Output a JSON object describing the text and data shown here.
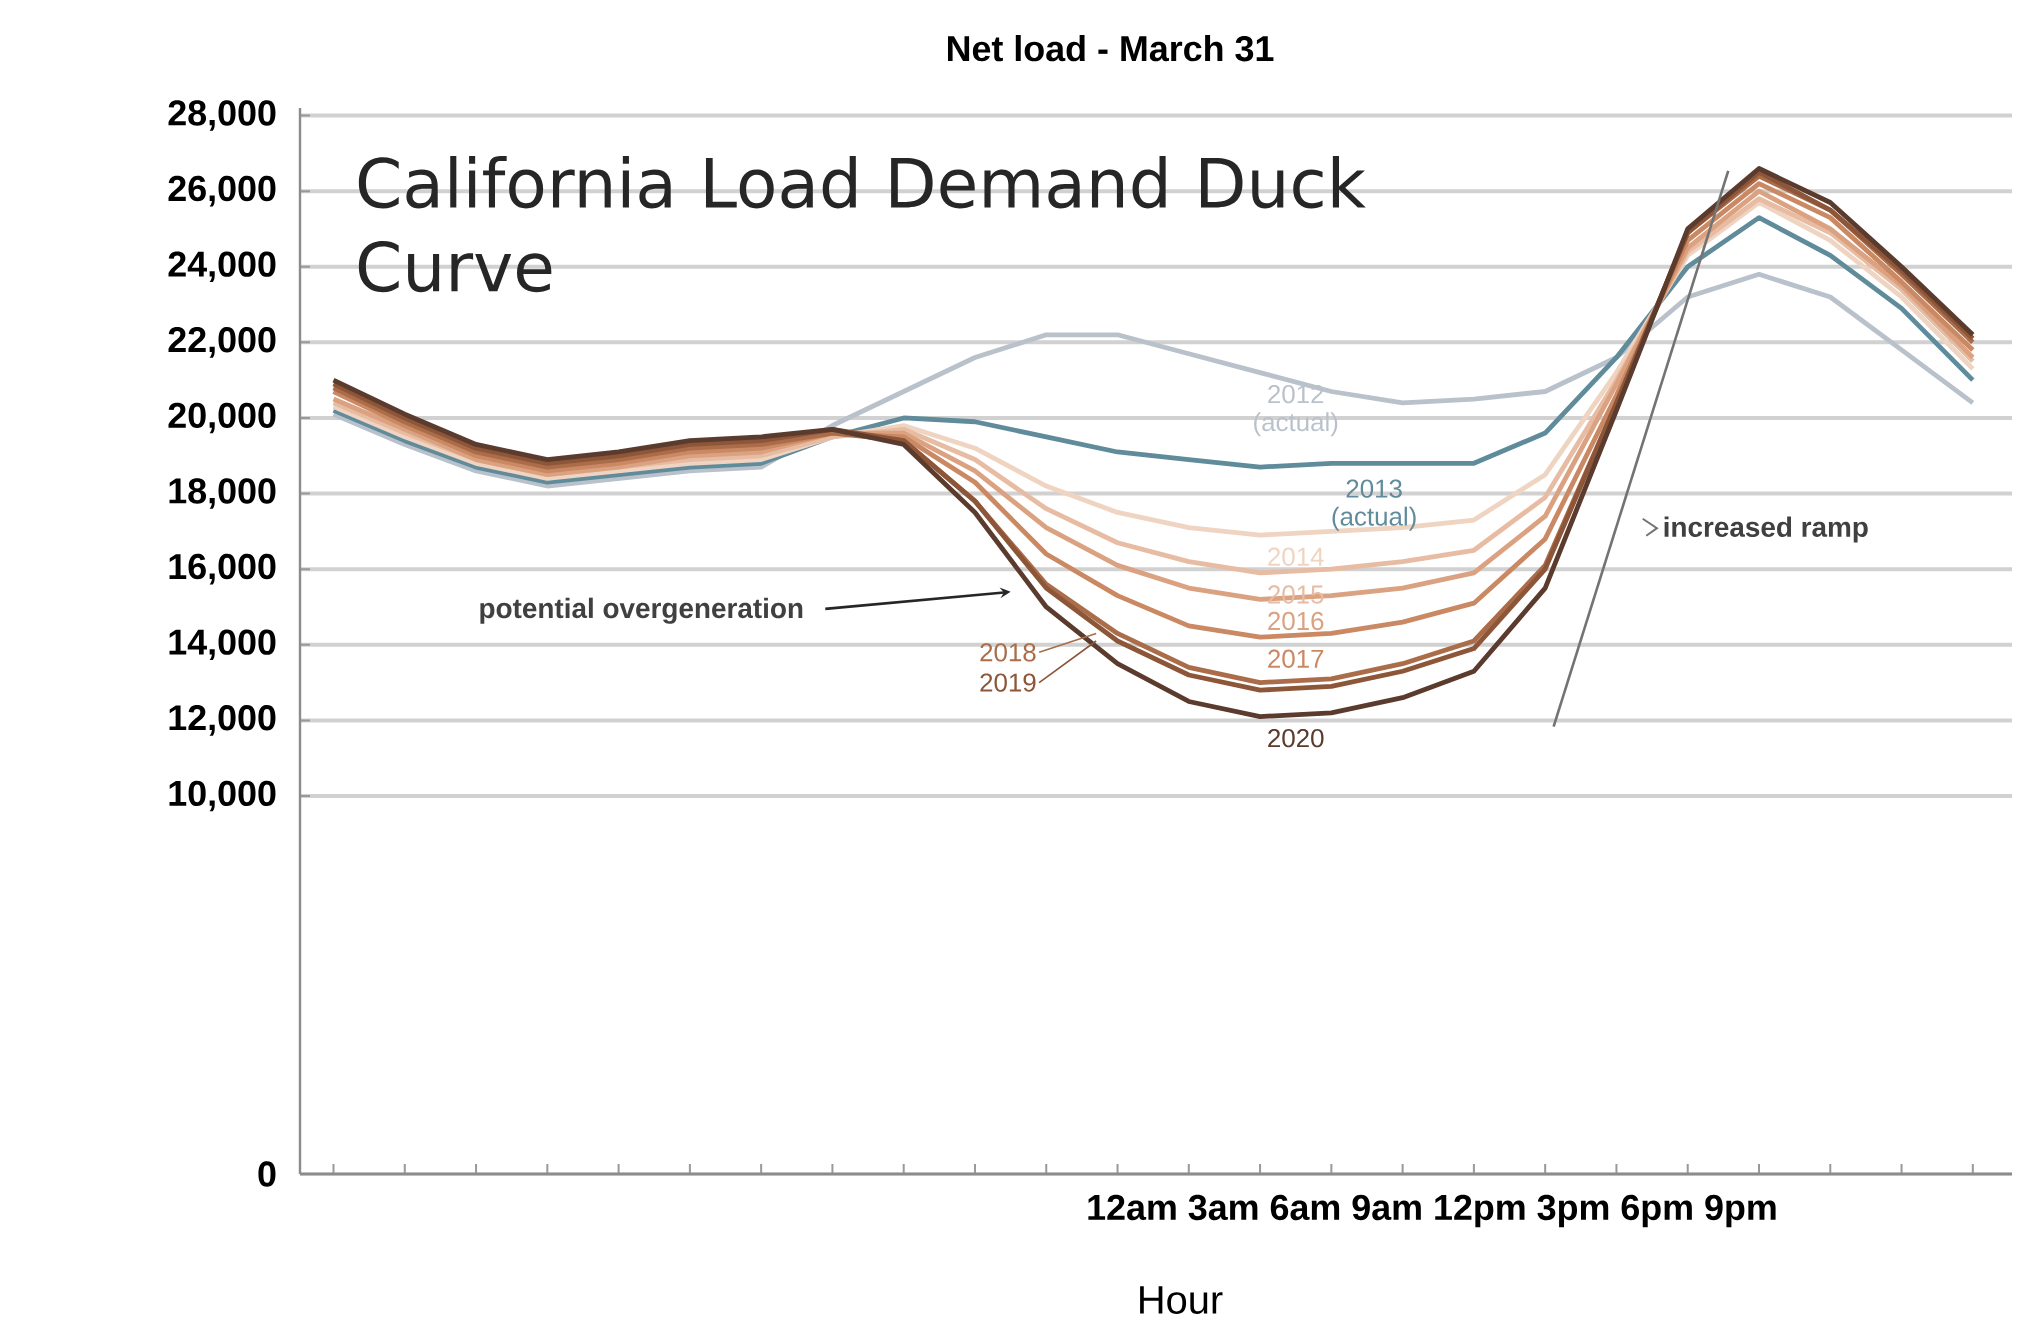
{
  "chart_data": {
    "type": "line",
    "title": "Net load - March 31",
    "xlabel": "Hour",
    "categories": [
      null,
      null,
      null,
      null,
      null,
      null,
      null,
      null,
      null,
      null,
      null,
      null,
      null,
      null,
      null,
      null,
      null,
      null,
      null,
      null,
      null,
      null,
      null,
      null
    ],
    "ylim": [
      0,
      28200
    ],
    "yticks": [
      {
        "value": 0,
        "label": "0"
      },
      {
        "value": 10000,
        "label": "10,000"
      },
      {
        "value": 12000,
        "label": "12,000"
      },
      {
        "value": 14000,
        "label": "14,000"
      },
      {
        "value": 16000,
        "label": "16,000"
      },
      {
        "value": 18000,
        "label": "18,000"
      },
      {
        "value": 20000,
        "label": "20,000"
      },
      {
        "value": 22000,
        "label": "22,000"
      },
      {
        "value": 24000,
        "label": "24,000"
      },
      {
        "value": 26000,
        "label": "26,000"
      },
      {
        "value": 28000,
        "label": "28,000"
      }
    ],
    "grid": "y",
    "series": [
      {
        "name": "2012 (actual)",
        "color": "#b9c1cb",
        "values": [
          20100,
          19300,
          18600,
          18200,
          18400,
          18600,
          18700,
          19800,
          20700,
          21600,
          22200,
          22200,
          21700,
          21200,
          20700,
          20400,
          20500,
          20700,
          21600,
          23200,
          23800,
          23200,
          21800,
          20400
        ]
      },
      {
        "name": "2013 (actual)",
        "color": "#5f8b9b",
        "values": [
          20200,
          19400,
          18700,
          18300,
          18500,
          18700,
          18800,
          19500,
          20000,
          19900,
          19500,
          19100,
          18900,
          18700,
          18800,
          18800,
          18800,
          19600,
          21600,
          24000,
          25300,
          24300,
          22900,
          21000
        ]
      },
      {
        "name": "2014",
        "color": "#f0d4c2",
        "values": [
          20300,
          19500,
          18800,
          18400,
          18600,
          18800,
          18900,
          19500,
          19800,
          19200,
          18200,
          17500,
          17100,
          16900,
          17000,
          17100,
          17300,
          18500,
          21200,
          24300,
          25700,
          24700,
          23200,
          21300
        ]
      },
      {
        "name": "2015",
        "color": "#e7bca2",
        "values": [
          20400,
          19600,
          18900,
          18500,
          18700,
          18900,
          19000,
          19500,
          19700,
          18900,
          17600,
          16700,
          16200,
          15900,
          16000,
          16200,
          16500,
          17900,
          21000,
          24400,
          25800,
          24900,
          23400,
          21500
        ]
      },
      {
        "name": "2016",
        "color": "#dba282",
        "values": [
          20500,
          19700,
          18900,
          18500,
          18700,
          19000,
          19100,
          19600,
          19600,
          18600,
          17100,
          16100,
          15500,
          15200,
          15300,
          15500,
          15900,
          17400,
          20900,
          24500,
          26000,
          25000,
          23500,
          21600
        ]
      },
      {
        "name": "2017",
        "color": "#ca8863",
        "values": [
          20700,
          19800,
          19000,
          18600,
          18800,
          19100,
          19200,
          19600,
          19500,
          18300,
          16400,
          15300,
          14500,
          14200,
          14300,
          14600,
          15100,
          16800,
          20600,
          24700,
          26200,
          25300,
          23600,
          21800
        ]
      },
      {
        "name": "2018",
        "color": "#aa6c49",
        "values": [
          20800,
          19900,
          19100,
          18700,
          18900,
          19200,
          19300,
          19600,
          19400,
          17800,
          15600,
          14300,
          13400,
          13000,
          13100,
          13500,
          14100,
          16100,
          20400,
          24900,
          26400,
          25500,
          23800,
          22000
        ]
      },
      {
        "name": "2019",
        "color": "#8d5639",
        "values": [
          20900,
          20000,
          19200,
          18800,
          19000,
          19300,
          19400,
          19700,
          19400,
          17800,
          15500,
          14100,
          13200,
          12800,
          12900,
          13300,
          13900,
          16000,
          20400,
          24900,
          26500,
          25500,
          23900,
          22100
        ]
      },
      {
        "name": "2020",
        "color": "#5b3b2d",
        "values": [
          21000,
          20100,
          19300,
          18900,
          19100,
          19400,
          19500,
          19700,
          19300,
          17500,
          15000,
          13500,
          12500,
          12100,
          12200,
          12600,
          13300,
          15500,
          20200,
          25000,
          26600,
          25700,
          24000,
          22200
        ]
      }
    ],
    "annotations": [
      "California Load Demand Duck Curve",
      "potential overgeneration",
      "increased ramp",
      "12am 3am 6am 9am 12pm 3pm 6pm 9pm"
    ]
  }
}
